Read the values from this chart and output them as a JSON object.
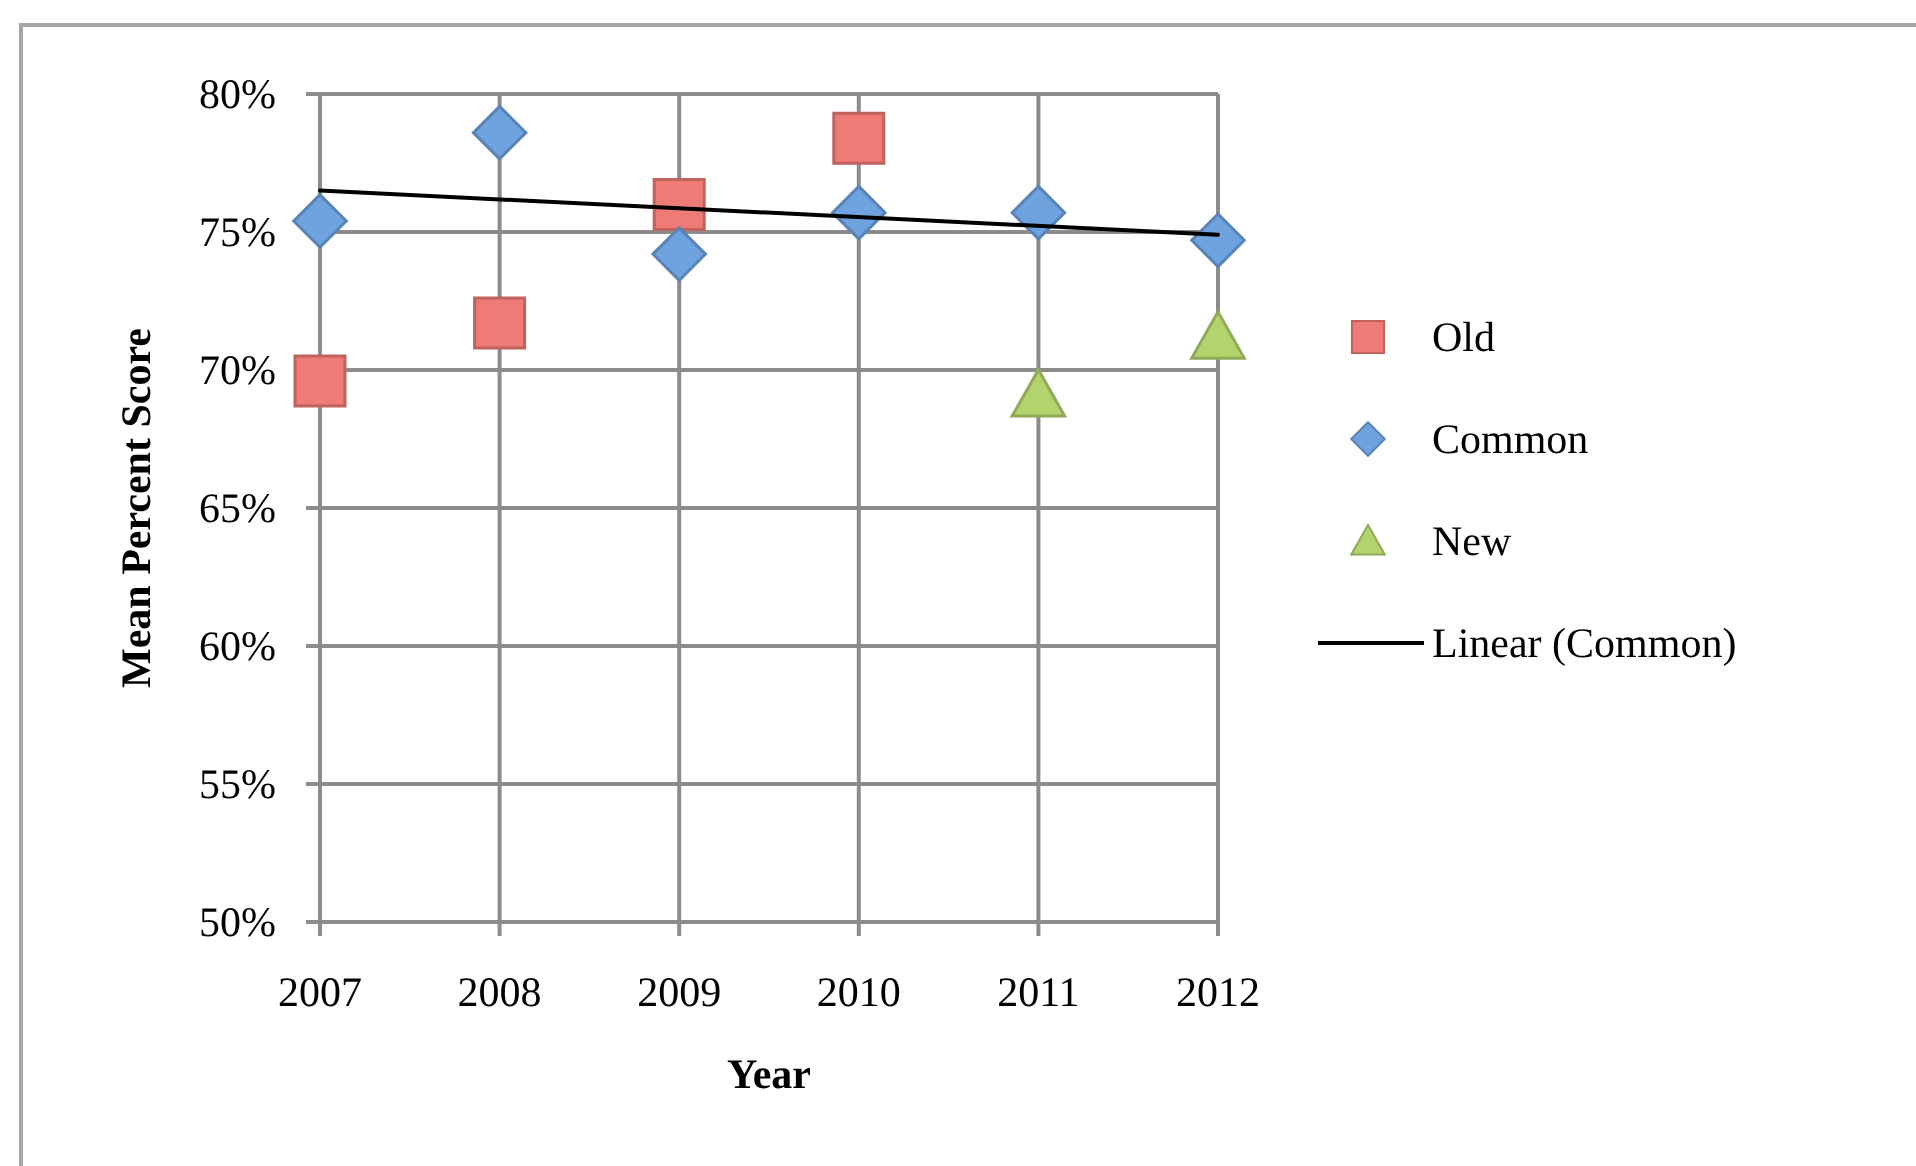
{
  "chart_data": {
    "type": "scatter",
    "xlabel": "Year",
    "ylabel": "Mean Percent Score",
    "x": [
      2007,
      2008,
      2009,
      2010,
      2011,
      2012
    ],
    "xlim": [
      2007,
      2012
    ],
    "xticks": [
      2007,
      2008,
      2009,
      2010,
      2011,
      2012
    ],
    "ylim": [
      50,
      80
    ],
    "yticks": [
      {
        "value": 50,
        "label": "50%"
      },
      {
        "value": 55,
        "label": "55%"
      },
      {
        "value": 60,
        "label": "60%"
      },
      {
        "value": 65,
        "label": "65%"
      },
      {
        "value": 70,
        "label": "70%"
      },
      {
        "value": 75,
        "label": "75%"
      },
      {
        "value": 80,
        "label": "80%"
      }
    ],
    "grid": true,
    "legend": "right",
    "series": [
      {
        "name": "Old",
        "color": "#ee7b76",
        "marker": "square",
        "values": [
          69.6,
          71.7,
          76.0,
          78.4,
          null,
          null
        ]
      },
      {
        "name": "Common",
        "color": "#6fa3e0",
        "marker": "diamond",
        "values": [
          75.4,
          78.6,
          74.2,
          75.7,
          75.7,
          74.7
        ]
      },
      {
        "name": "New",
        "color": "#b2d36d",
        "marker": "triangle",
        "values": [
          null,
          null,
          null,
          null,
          69.1,
          71.2
        ]
      },
      {
        "name": "Linear (Common)",
        "type": "line",
        "color": "#000000",
        "x": [
          2007,
          2012
        ],
        "values": [
          76.5,
          74.9
        ],
        "marker": "none",
        "line_style": "solid"
      }
    ]
  }
}
